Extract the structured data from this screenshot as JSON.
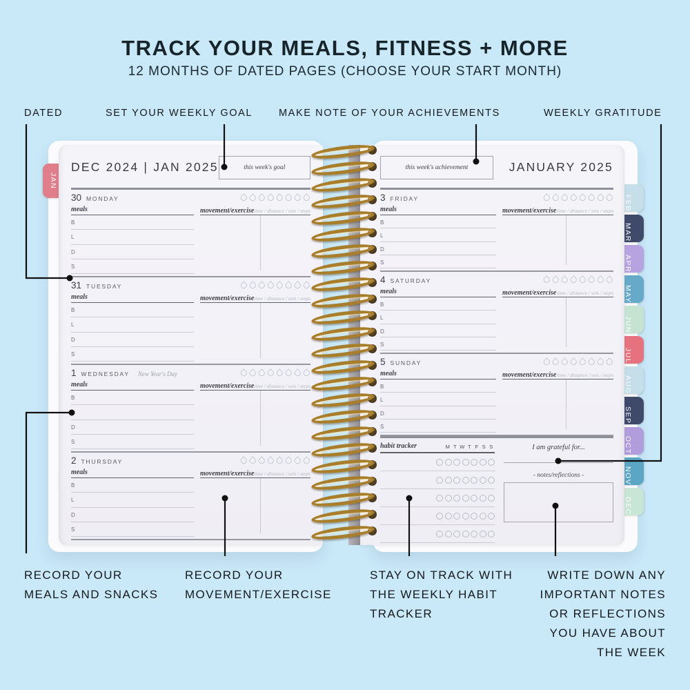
{
  "header": {
    "title": "TRACK YOUR MEALS, FITNESS + MORE",
    "subtitle": "12 MONTHS OF DATED PAGES (CHOOSE YOUR START MONTH)"
  },
  "annotations": {
    "top": [
      {
        "label": "DATED"
      },
      {
        "label": "SET YOUR WEEKLY GOAL"
      },
      {
        "label": "MAKE NOTE OF YOUR ACHIEVEMENTS"
      },
      {
        "label": "WEEKLY GRATITUDE"
      }
    ],
    "bottom": [
      {
        "label": "RECORD YOUR\nMEALS AND SNACKS"
      },
      {
        "label": "RECORD YOUR\nMOVEMENT/EXERCISE"
      },
      {
        "label": "STAY ON TRACK WITH\nTHE WEEKLY HABIT\nTRACKER"
      },
      {
        "label": "WRITE DOWN ANY\nIMPORTANT NOTES\nOR REFLECTIONS\nYOU HAVE ABOUT\nTHE WEEK"
      }
    ]
  },
  "book": {
    "left_tab": {
      "label": "JAN",
      "color": "#e07e8c"
    },
    "right_tabs": [
      {
        "label": "FEB",
        "color": "#c5dee9"
      },
      {
        "label": "MAR",
        "color": "#3f4a6b"
      },
      {
        "label": "APR",
        "color": "#b6a3e0"
      },
      {
        "label": "MAY",
        "color": "#66a9c9"
      },
      {
        "label": "JUN",
        "color": "#c6e3d2"
      },
      {
        "label": "JUL",
        "color": "#e7727f"
      },
      {
        "label": "AUG",
        "color": "#c5dee9"
      },
      {
        "label": "SEP",
        "color": "#3f4a6b"
      },
      {
        "label": "OCT",
        "color": "#b29ddc"
      },
      {
        "label": "NOV",
        "color": "#5ba6c4"
      },
      {
        "label": "DEC",
        "color": "#c9e5d6"
      }
    ],
    "shared": {
      "meals_label": "meals",
      "movement_label": "movement/exercise",
      "metrics_label": "time / distance / sets / steps",
      "meal_rows": [
        "B",
        "L",
        "D",
        "S"
      ],
      "droplets_per_day": 8
    },
    "left_page": {
      "header": "DEC 2024 | JAN 2025",
      "goal_label": "this week's goal",
      "days": [
        {
          "num": "30",
          "name": "MONDAY",
          "note": ""
        },
        {
          "num": "31",
          "name": "TUESDAY",
          "note": ""
        },
        {
          "num": "1",
          "name": "WEDNESDAY",
          "note": "New Year's Day"
        },
        {
          "num": "2",
          "name": "THURSDAY",
          "note": ""
        }
      ]
    },
    "right_page": {
      "header": "JANUARY 2025",
      "achievement_label": "this week's achievement",
      "days": [
        {
          "num": "3",
          "name": "FRIDAY",
          "note": ""
        },
        {
          "num": "4",
          "name": "SATURDAY",
          "note": ""
        },
        {
          "num": "5",
          "name": "SUNDAY",
          "note": ""
        }
      ],
      "habit": {
        "label": "habit tracker",
        "day_letters": [
          "M",
          "T",
          "W",
          "T",
          "F",
          "S",
          "S"
        ],
        "rows": 5
      },
      "gratitude_label": "I am grateful for...",
      "notes_label": "-  notes/reflections  -"
    }
  },
  "colors": {
    "background": "#c9e8f8",
    "ink": "#15191c",
    "page": "#f3f2f7",
    "spiral_gold": "#a87d2b",
    "jan_tab": "#e07e8c"
  }
}
